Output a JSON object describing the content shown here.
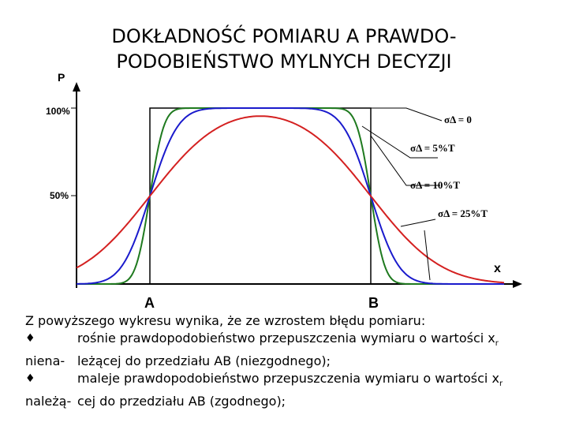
{
  "title": {
    "line1": "DOKŁADNOŚĆ POMIARU A PRAWDO-",
    "line2": "PODOBIEŃSTWO MYLNYCH DECYZJI"
  },
  "diagram": {
    "y_axis_label": "P",
    "x_axis_label": "x",
    "tick_100": "100%",
    "tick_50": "50%",
    "point_a": "A",
    "point_b": "B",
    "curves": [
      {
        "sigma": "σΔ = 0",
        "color": "#000000"
      },
      {
        "sigma": "σΔ = 5%T",
        "color": "#1f7a1f"
      },
      {
        "sigma": "σΔ = 10%T",
        "color": "#1a1acc"
      },
      {
        "sigma": "σΔ = 25%T",
        "color": "#d42020"
      }
    ]
  },
  "text": {
    "intro": "Z powyższego wykresu wynika, że ze wzrostem błędu pomiaru:",
    "bullet1_line1": "rośnie prawdopodobieństwo przepuszczenia wymiaru o wartości x",
    "bullet1_sub": "r",
    "bullet1_line2_left": "niena-",
    "bullet1_line2": "leżącej do przedziału AB (niezgodnego);",
    "bullet2_line1": "maleje prawdopodobieństwo przepuszczenia wymiaru o wartości x",
    "bullet2_sub": "r",
    "bullet2_line2_left": "należą-",
    "bullet2_line2": "cej do przedziału AB (zgodnego);"
  }
}
